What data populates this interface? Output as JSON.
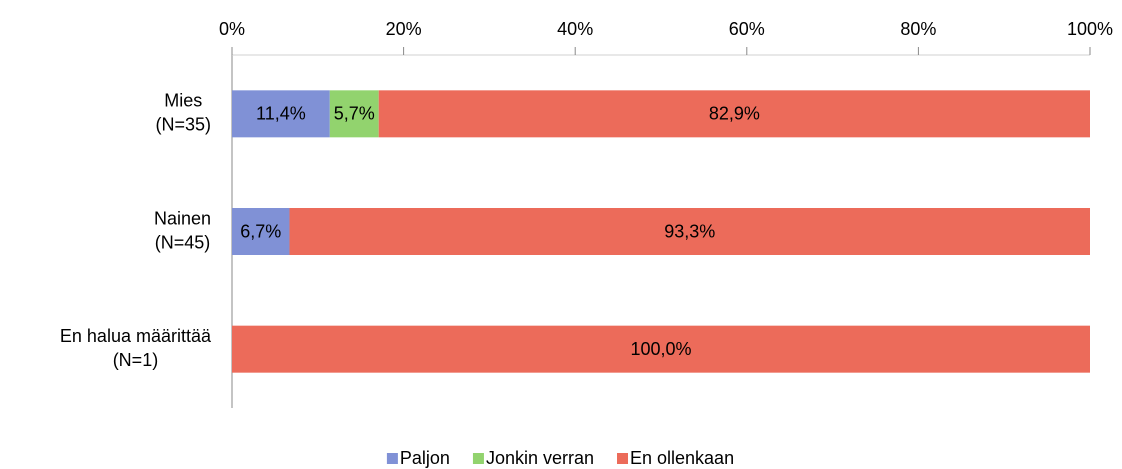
{
  "chart_data": {
    "type": "stacked_bar_horizontal",
    "categories": [
      [
        "Mies",
        "(N=35)"
      ],
      [
        "Nainen",
        "(N=45)"
      ],
      [
        "En halua määrittää",
        "(N=1)"
      ]
    ],
    "series": [
      {
        "name": "Paljon",
        "color": "#8091d6",
        "values": [
          11.4,
          6.7,
          null
        ],
        "value_labels": [
          "11,4%",
          "6,7%",
          null
        ]
      },
      {
        "name": "Jonkin verran",
        "color": "#92d36e",
        "values": [
          5.7,
          null,
          null
        ],
        "value_labels": [
          "5,7%",
          null,
          null
        ]
      },
      {
        "name": "En ollenkaan",
        "color": "#ec6b5a",
        "values": [
          82.9,
          93.3,
          100
        ],
        "value_labels": [
          "82,9%",
          "93,3%",
          "100,0%"
        ]
      }
    ],
    "xlim": [
      0,
      100
    ],
    "xticks": [
      {
        "value": 0,
        "label": "0%"
      },
      {
        "value": 20,
        "label": "20%"
      },
      {
        "value": 40,
        "label": "40%"
      },
      {
        "value": 60,
        "label": "60%"
      },
      {
        "value": 80,
        "label": "80%"
      },
      {
        "value": 100,
        "label": "100%"
      }
    ],
    "legend": "bottom"
  }
}
